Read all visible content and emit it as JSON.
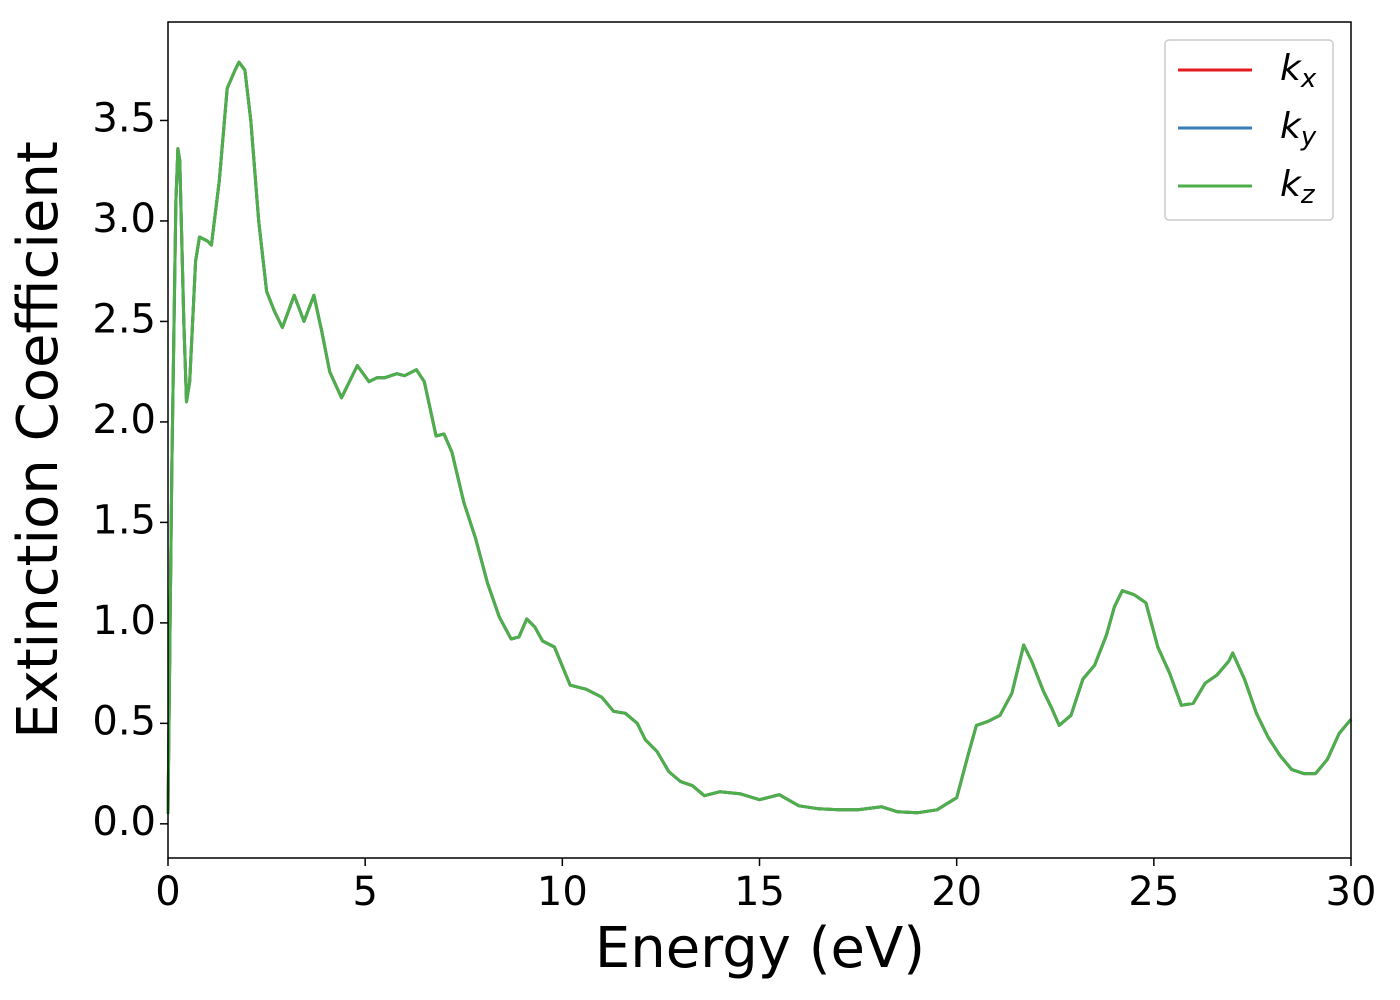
{
  "chart_data": {
    "type": "line",
    "xlabel": "Energy (eV)",
    "ylabel": "Extinction Coefficient",
    "x": [
      0,
      0.1,
      0.2,
      0.25,
      0.3,
      0.4,
      0.47,
      0.55,
      0.7,
      0.8,
      1.0,
      1.1,
      1.3,
      1.5,
      1.7,
      1.8,
      1.95,
      2.1,
      2.3,
      2.5,
      2.7,
      2.9,
      3.2,
      3.45,
      3.7,
      3.9,
      4.1,
      4.4,
      4.8,
      5.1,
      5.3,
      5.5,
      5.8,
      6.0,
      6.3,
      6.5,
      6.8,
      7.0,
      7.2,
      7.5,
      7.8,
      8.1,
      8.4,
      8.7,
      8.9,
      9.1,
      9.3,
      9.5,
      9.8,
      10.2,
      10.6,
      11.0,
      11.3,
      11.6,
      11.9,
      12.1,
      12.4,
      12.7,
      13.0,
      13.3,
      13.6,
      14.0,
      14.5,
      15.0,
      15.5,
      16.0,
      16.5,
      17.0,
      17.5,
      18.1,
      18.5,
      19.0,
      19.5,
      20.0,
      20.3,
      20.5,
      20.8,
      21.1,
      21.4,
      21.7,
      21.9,
      22.2,
      22.4,
      22.6,
      22.9,
      23.2,
      23.5,
      23.8,
      24.0,
      24.2,
      24.5,
      24.8,
      25.1,
      25.4,
      25.7,
      26.0,
      26.3,
      26.6,
      26.9,
      27.0,
      27.3,
      27.6,
      27.9,
      28.2,
      28.5,
      28.8,
      29.1,
      29.4,
      29.7,
      30.0
    ],
    "series": [
      {
        "name": "kx",
        "color": "#e41a1c",
        "values": [
          0.05,
          1.8,
          3.1,
          3.36,
          3.3,
          2.5,
          2.1,
          2.2,
          2.8,
          2.92,
          2.9,
          2.88,
          3.2,
          3.66,
          3.75,
          3.79,
          3.75,
          3.5,
          3.0,
          2.65,
          2.55,
          2.47,
          2.63,
          2.5,
          2.63,
          2.45,
          2.25,
          2.12,
          2.28,
          2.2,
          2.22,
          2.22,
          2.24,
          2.23,
          2.26,
          2.2,
          1.93,
          1.94,
          1.85,
          1.6,
          1.42,
          1.2,
          1.03,
          0.92,
          0.93,
          1.02,
          0.98,
          0.91,
          0.88,
          0.69,
          0.67,
          0.63,
          0.56,
          0.55,
          0.5,
          0.42,
          0.36,
          0.26,
          0.21,
          0.19,
          0.14,
          0.16,
          0.15,
          0.12,
          0.145,
          0.09,
          0.075,
          0.07,
          0.07,
          0.085,
          0.06,
          0.055,
          0.07,
          0.13,
          0.35,
          0.49,
          0.51,
          0.54,
          0.65,
          0.89,
          0.81,
          0.66,
          0.58,
          0.49,
          0.54,
          0.72,
          0.79,
          0.94,
          1.08,
          1.16,
          1.14,
          1.1,
          0.88,
          0.75,
          0.59,
          0.6,
          0.7,
          0.74,
          0.81,
          0.85,
          0.72,
          0.55,
          0.43,
          0.34,
          0.27,
          0.25,
          0.25,
          0.32,
          0.45,
          0.52
        ]
      },
      {
        "name": "ky",
        "color": "#377eb8",
        "values": [
          0.05,
          1.8,
          3.1,
          3.36,
          3.3,
          2.5,
          2.1,
          2.2,
          2.8,
          2.92,
          2.9,
          2.88,
          3.2,
          3.66,
          3.75,
          3.79,
          3.75,
          3.5,
          3.0,
          2.65,
          2.55,
          2.47,
          2.63,
          2.5,
          2.63,
          2.45,
          2.25,
          2.12,
          2.28,
          2.2,
          2.22,
          2.22,
          2.24,
          2.23,
          2.26,
          2.2,
          1.93,
          1.94,
          1.85,
          1.6,
          1.42,
          1.2,
          1.03,
          0.92,
          0.93,
          1.02,
          0.98,
          0.91,
          0.88,
          0.69,
          0.67,
          0.63,
          0.56,
          0.55,
          0.5,
          0.42,
          0.36,
          0.26,
          0.21,
          0.19,
          0.14,
          0.16,
          0.15,
          0.12,
          0.145,
          0.09,
          0.075,
          0.07,
          0.07,
          0.085,
          0.06,
          0.055,
          0.07,
          0.13,
          0.35,
          0.49,
          0.51,
          0.54,
          0.65,
          0.89,
          0.81,
          0.66,
          0.58,
          0.49,
          0.54,
          0.72,
          0.79,
          0.94,
          1.08,
          1.16,
          1.14,
          1.1,
          0.88,
          0.75,
          0.59,
          0.6,
          0.7,
          0.74,
          0.81,
          0.85,
          0.72,
          0.55,
          0.43,
          0.34,
          0.27,
          0.25,
          0.25,
          0.32,
          0.45,
          0.52
        ]
      },
      {
        "name": "kz",
        "color": "#4daf4a",
        "values": [
          0.05,
          1.8,
          3.1,
          3.36,
          3.3,
          2.5,
          2.1,
          2.2,
          2.8,
          2.92,
          2.9,
          2.88,
          3.2,
          3.66,
          3.75,
          3.79,
          3.75,
          3.5,
          3.0,
          2.65,
          2.55,
          2.47,
          2.63,
          2.5,
          2.63,
          2.45,
          2.25,
          2.12,
          2.28,
          2.2,
          2.22,
          2.22,
          2.24,
          2.23,
          2.26,
          2.2,
          1.93,
          1.94,
          1.85,
          1.6,
          1.42,
          1.2,
          1.03,
          0.92,
          0.93,
          1.02,
          0.98,
          0.91,
          0.88,
          0.69,
          0.67,
          0.63,
          0.56,
          0.55,
          0.5,
          0.42,
          0.36,
          0.26,
          0.21,
          0.19,
          0.14,
          0.16,
          0.15,
          0.12,
          0.145,
          0.09,
          0.075,
          0.07,
          0.07,
          0.085,
          0.06,
          0.055,
          0.07,
          0.13,
          0.35,
          0.49,
          0.51,
          0.54,
          0.65,
          0.89,
          0.81,
          0.66,
          0.58,
          0.49,
          0.54,
          0.72,
          0.79,
          0.94,
          1.08,
          1.16,
          1.14,
          1.1,
          0.88,
          0.75,
          0.59,
          0.6,
          0.7,
          0.74,
          0.81,
          0.85,
          0.72,
          0.55,
          0.43,
          0.34,
          0.27,
          0.25,
          0.25,
          0.32,
          0.45,
          0.52
        ]
      }
    ],
    "xlim": [
      0,
      30
    ],
    "xticks": [
      0,
      5,
      10,
      15,
      20,
      25,
      30
    ],
    "ylim": [
      -0.17,
      3.99
    ],
    "yticks": [
      {
        "value": 0,
        "label": "0.0"
      },
      0.5,
      {
        "value": 1,
        "label": "1.0"
      },
      1.5,
      {
        "value": 2,
        "label": "2.0"
      },
      2.5,
      {
        "value": 3,
        "label": "3.0"
      },
      3.5
    ],
    "legend": "upper right",
    "grid": false
  }
}
